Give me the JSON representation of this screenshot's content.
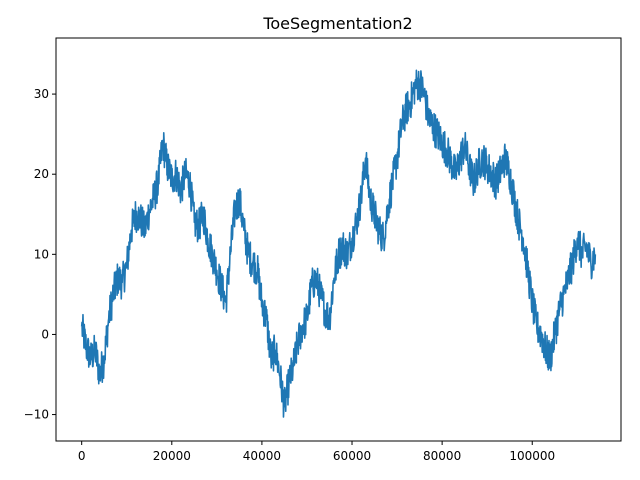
{
  "chart_data": {
    "type": "line",
    "title": "ToeSegmentation2",
    "xlabel": "",
    "ylabel": "",
    "xlim": [
      -5700,
      119700
    ],
    "ylim": [
      -13.3,
      37.0
    ],
    "xticks": [
      0,
      20000,
      40000,
      60000,
      80000,
      100000
    ],
    "xtick_labels": [
      "0",
      "20000",
      "40000",
      "60000",
      "80000",
      "100000"
    ],
    "yticks": [
      -10,
      0,
      10,
      20,
      30
    ],
    "ytick_labels": [
      "−10",
      "0",
      "10",
      "20",
      "30"
    ],
    "grid": false,
    "legend": "none",
    "series": [
      {
        "color": "#1f77b4",
        "x": [
          0,
          1000,
          2000,
          3000,
          4000,
          5000,
          6000,
          7000,
          8000,
          9000,
          10000,
          11000,
          12000,
          13000,
          14000,
          15000,
          16000,
          17000,
          18000,
          19000,
          20000,
          21000,
          22000,
          23000,
          24000,
          25000,
          26000,
          27000,
          28000,
          29000,
          30000,
          31000,
          32000,
          33000,
          34000,
          35000,
          36000,
          37000,
          38000,
          39000,
          40000,
          41000,
          42000,
          43000,
          44000,
          45000,
          46000,
          47000,
          48000,
          49000,
          50000,
          51000,
          52000,
          53000,
          54000,
          55000,
          56000,
          57000,
          58000,
          59000,
          60000,
          61000,
          62000,
          63000,
          64000,
          65000,
          66000,
          67000,
          68000,
          69000,
          70000,
          71000,
          72000,
          73000,
          74000,
          75000,
          76000,
          77000,
          78000,
          79000,
          80000,
          81000,
          82000,
          83000,
          84000,
          85000,
          86000,
          87000,
          88000,
          89000,
          90000,
          91000,
          92000,
          93000,
          94000,
          95000,
          96000,
          97000,
          98000,
          99000,
          100000,
          101000,
          102000,
          103000,
          104000,
          105000,
          106000,
          107000,
          108000,
          109000,
          110000,
          111000,
          112000,
          113000,
          114000
        ],
        "y": [
          1.0,
          -1.5,
          -3.0,
          -2.0,
          -5.0,
          -3.0,
          2.0,
          5.0,
          7.0,
          6.5,
          8.5,
          13.0,
          15.0,
          14.5,
          13.0,
          15.5,
          17.0,
          19.0,
          24.0,
          21.0,
          19.5,
          20.0,
          18.0,
          20.0,
          19.0,
          14.0,
          13.5,
          15.0,
          12.0,
          10.0,
          8.0,
          6.0,
          4.0,
          10.0,
          15.5,
          17.0,
          13.0,
          10.0,
          9.0,
          8.0,
          4.0,
          2.0,
          -3.0,
          -2.0,
          -5.0,
          -9.0,
          -6.0,
          -4.0,
          -1.0,
          1.0,
          2.0,
          6.0,
          7.0,
          5.0,
          3.0,
          2.0,
          7.0,
          10.0,
          11.0,
          10.0,
          12.0,
          14.0,
          17.0,
          22.0,
          17.0,
          15.0,
          13.0,
          12.0,
          16.0,
          19.0,
          22.0,
          26.0,
          28.0,
          29.0,
          31.0,
          31.5,
          30.0,
          27.0,
          26.0,
          25.0,
          24.0,
          23.0,
          21.5,
          20.0,
          22.0,
          23.5,
          21.0,
          19.0,
          21.0,
          22.0,
          21.0,
          20.0,
          19.0,
          20.5,
          22.0,
          20.0,
          17.0,
          14.0,
          12.0,
          8.0,
          4.0,
          1.0,
          0.0,
          -2.0,
          -3.0,
          0.0,
          3.0,
          5.0,
          7.0,
          9.0,
          12.0,
          10.0,
          11.0,
          9.0,
          10.0
        ]
      }
    ]
  }
}
